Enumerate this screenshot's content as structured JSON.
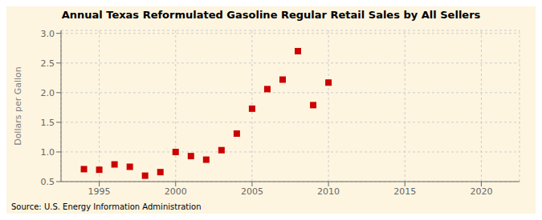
{
  "chart_data": {
    "type": "scatter",
    "title": "Annual Texas Reformulated Gasoline Regular Retail Sales by All Sellers",
    "y_label": "Dollars per Gallon",
    "annotation": "Source: U.S. Energy Information Administration",
    "x": [
      1994,
      1995,
      1996,
      1997,
      1998,
      1999,
      2000,
      2001,
      2002,
      2003,
      2004,
      2005,
      2006,
      2007,
      2008,
      2009,
      2010
    ],
    "values": [
      0.71,
      0.7,
      0.79,
      0.75,
      0.6,
      0.66,
      1.0,
      0.93,
      0.87,
      1.03,
      1.31,
      1.73,
      2.06,
      2.22,
      2.7,
      1.79,
      2.17
    ],
    "color": "#cc0000",
    "marker": "square",
    "grid": true,
    "xlim": [
      1992.5,
      2022.5
    ],
    "ylim": [
      0.5,
      3.05
    ],
    "xticks": [
      1995,
      2000,
      2005,
      2010,
      2015,
      2020
    ],
    "yticks": [
      0.5,
      {
        "value": 1,
        "label": "1.0"
      },
      1.5,
      {
        "value": 2,
        "label": "2.0"
      },
      2.5,
      {
        "value": 3,
        "label": "3.0"
      }
    ]
  }
}
